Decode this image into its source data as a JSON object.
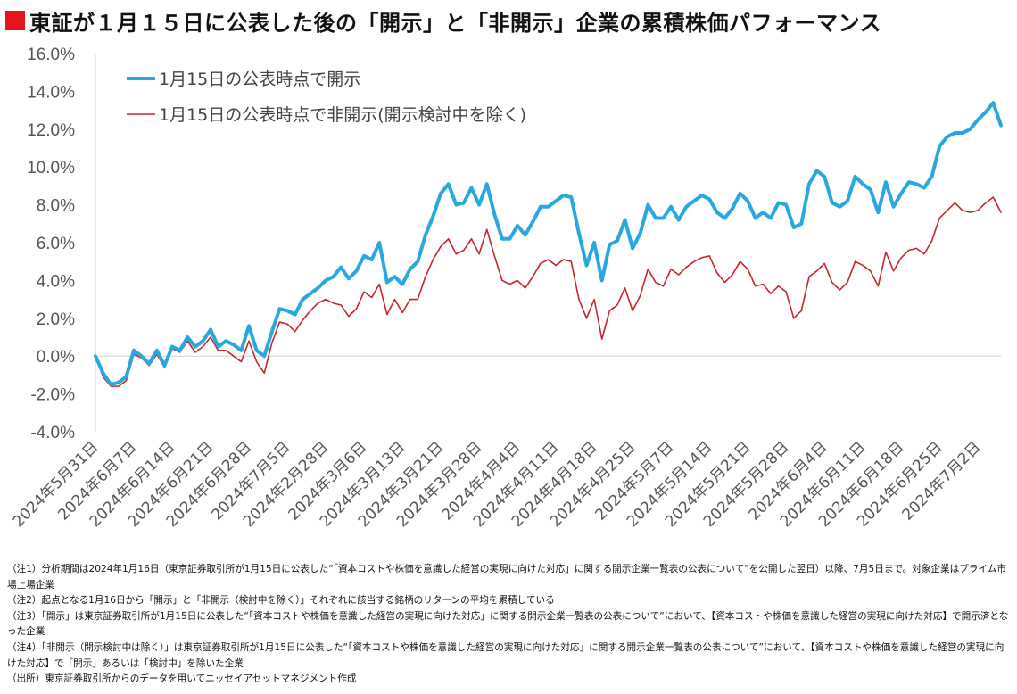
{
  "title": "東証が１月１５日に公表した後の「開示」と「非開示」企業の累積株価パフォーマンス",
  "chart_data": {
    "type": "line",
    "title": "東証が１月１５日に公表した後の「開示」と「非開示」企業の累積株価パフォーマンス",
    "xlabel": "",
    "ylabel": "",
    "ylim": [
      -4.0,
      16.0
    ],
    "yticks": [
      "16.0%",
      "14.0%",
      "12.0%",
      "10.0%",
      "8.0%",
      "6.0%",
      "4.0%",
      "2.0%",
      "0.0%",
      "-2.0%",
      "-4.0%"
    ],
    "yvalues": [
      16,
      14,
      12,
      10,
      8,
      6,
      4,
      2,
      0,
      -2,
      -4
    ],
    "xtick_labels": [
      "2024年5月31日",
      "2024年6月7日",
      "2024年6月14日",
      "2024年6月21日",
      "2024年6月28日",
      "2024年7月5日",
      "2024年2月28日",
      "2024年3月6日",
      "2024年3月13日",
      "2024年3月21日",
      "2024年3月28日",
      "2024年4月4日",
      "2024年4月11日",
      "2024年4月18日",
      "2024年4月25日",
      "2024年5月7日",
      "2024年5月14日",
      "2024年5月21日",
      "2024年5月28日",
      "2024年6月4日",
      "2024年6月11日",
      "2024年6月18日",
      "2024年6月25日",
      "2024年7月2日"
    ],
    "grid": false,
    "legend": "top-left",
    "series": [
      {
        "name": "1月15日の公表時点で開示",
        "color": "#29a8e0",
        "values": [
          0,
          -0.9,
          -1.5,
          -1.4,
          -1.1,
          0.3,
          0.0,
          -0.4,
          0.3,
          -0.5,
          0.5,
          0.3,
          1.0,
          0.5,
          0.8,
          1.4,
          0.5,
          0.8,
          0.6,
          0.3,
          1.6,
          0.3,
          0.0,
          1.3,
          2.5,
          2.4,
          2.2,
          3.0,
          3.3,
          3.6,
          4.0,
          4.2,
          4.7,
          4.1,
          4.5,
          5.3,
          5.1,
          6.0,
          3.9,
          4.2,
          3.8,
          4.6,
          5.0,
          6.4,
          7.4,
          8.6,
          9.1,
          8.0,
          8.1,
          8.9,
          8.0,
          9.1,
          7.5,
          6.2,
          6.2,
          6.9,
          6.4,
          7.1,
          7.9,
          7.9,
          8.2,
          8.5,
          8.4,
          6.5,
          4.8,
          6.0,
          4.0,
          5.9,
          6.1,
          7.2,
          5.7,
          6.5,
          8.0,
          7.3,
          7.3,
          7.9,
          7.2,
          7.9,
          8.2,
          8.5,
          8.3,
          7.6,
          7.3,
          7.8,
          8.6,
          8.2,
          7.3,
          7.6,
          7.3,
          8.1,
          8.0,
          6.8,
          7.0,
          9.1,
          9.8,
          9.5,
          8.1,
          7.9,
          8.2,
          9.5,
          9.1,
          8.8,
          7.6,
          9.2,
          7.9,
          8.6,
          9.2,
          9.1,
          8.9,
          9.5,
          11.1,
          11.6,
          11.8,
          11.8,
          12.0,
          12.5,
          12.9,
          13.4,
          12.2
        ]
      },
      {
        "name": "1月15日の公表時点で非開示(開示検討中を除く)",
        "color": "#c9252b",
        "values": [
          0,
          -1.1,
          -1.6,
          -1.6,
          -1.3,
          0.1,
          -0.1,
          -0.5,
          0.1,
          -0.6,
          0.4,
          0.2,
          0.8,
          0.2,
          0.5,
          1.0,
          0.3,
          0.3,
          0.0,
          -0.3,
          0.8,
          -0.3,
          -0.9,
          0.7,
          1.8,
          1.7,
          1.3,
          1.9,
          2.4,
          2.8,
          3.0,
          2.8,
          2.7,
          2.1,
          2.5,
          3.4,
          3.1,
          3.8,
          2.2,
          3.0,
          2.3,
          3.0,
          3.0,
          4.2,
          5.1,
          5.8,
          6.2,
          5.4,
          5.6,
          6.2,
          5.4,
          6.7,
          5.3,
          4.0,
          3.8,
          4.0,
          3.6,
          4.2,
          4.9,
          5.1,
          4.8,
          5.1,
          5.0,
          3.0,
          2.0,
          3.0,
          0.9,
          2.4,
          2.7,
          3.6,
          2.4,
          3.2,
          4.6,
          3.9,
          3.7,
          4.6,
          4.3,
          4.7,
          5.0,
          5.2,
          5.3,
          4.4,
          3.9,
          4.3,
          5.0,
          4.6,
          3.7,
          3.8,
          3.3,
          3.7,
          3.4,
          2.0,
          2.4,
          4.2,
          4.5,
          4.9,
          3.9,
          3.5,
          3.9,
          5.0,
          4.8,
          4.5,
          3.7,
          5.5,
          4.5,
          5.2,
          5.6,
          5.7,
          5.4,
          6.1,
          7.3,
          7.7,
          8.1,
          7.7,
          7.6,
          7.7,
          8.1,
          8.4,
          7.6
        ]
      }
    ]
  },
  "notes": [
    "（注1）分析期間は2024年1月16日（東京証券取引所が1月15日に公表した“「資本コストや株価を意識した経営の実現に向けた対応」に関する開示企業一覧表の公表について”を公開した翌日）以降、7月5日まで。対象企業はプライム市場上場企業",
    "（注2）起点となる1月16日から「開示」と「非開示（検討中を除く）」それぞれに該当する銘柄のリターンの平均を累積している",
    "（注3）「開示」は東京証券取引所が1月15日に公表した“「資本コストや株価を意識した経営の実現に向けた対応」に関する開示企業一覧表の公表について”において、【資本コストや株価を意識した経営の実現に向けた対応】で開示済となった企業",
    "（注4）「非開示（開示検討中は除く）」は東京証券取引所が1月15日に公表した“「資本コストや株価を意識した経営の実現に向けた対応」に関する開示企業一覧表の公表について”において、【資本コストや株価を意識した経営の実現に向けた対応】で「開示」あるいは「検討中」を除いた企業",
    "（出所）東京証券取引所からのデータを用いてニッセイアセットマネジメント作成"
  ]
}
